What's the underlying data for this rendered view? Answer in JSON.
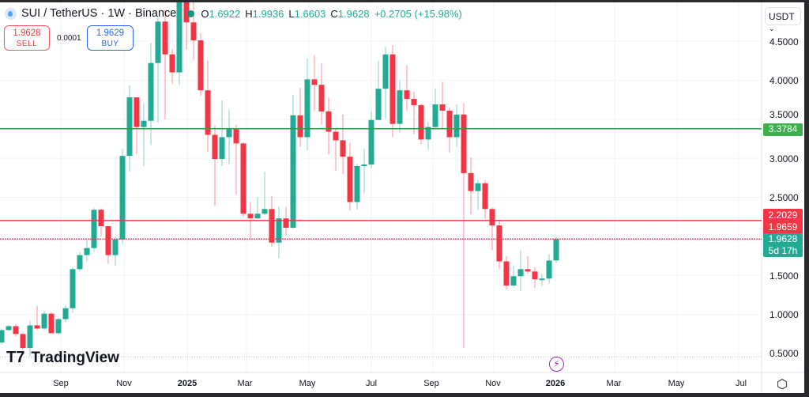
{
  "header": {
    "symbol": "SUI / TetherUS · 1W · Binance",
    "open_label": "O",
    "open": "1.6922",
    "high_label": "H",
    "high": "1.9936",
    "low_label": "L",
    "low": "1.6603",
    "close_label": "C",
    "close": "1.9628",
    "change": "+0.2705 (+15.98%)"
  },
  "trade": {
    "sell_price": "1.9628",
    "sell_label": "SELL",
    "spread": "0.0001",
    "buy_price": "1.9629",
    "buy_label": "BUY"
  },
  "currency": "USDT",
  "price_axis": [
    "4.5000",
    "4.0000",
    "3.5000",
    "3.0000",
    "2.5000",
    "1.5000",
    "1.0000",
    "0.5000"
  ],
  "price_labels": {
    "green_line": "3.3784",
    "red_line": "2.2029",
    "red_dotted": "1.9659",
    "last": "1.9628",
    "countdown": "5d 17h"
  },
  "time_axis": [
    "Sep",
    "Nov",
    "2025",
    "Mar",
    "May",
    "Jul",
    "Sep",
    "Nov",
    "2026",
    "Mar",
    "May",
    "Jul"
  ],
  "brand": "TradingView",
  "icons": {
    "settings": "gear-icon",
    "event": "lightning-icon",
    "dropdown": "chevron-down-icon"
  },
  "colors": {
    "up": "#22ab94",
    "down": "#f23645",
    "green_line": "#2ea043",
    "red_line": "#f23645"
  },
  "chart_data": {
    "type": "candlestick",
    "interval": "1W",
    "ylim": [
      0.4,
      5.05
    ],
    "hlines": [
      {
        "value": 3.3784,
        "color": "green"
      },
      {
        "value": 2.2029,
        "color": "red"
      },
      {
        "value": 1.9659,
        "color": "red",
        "style": "dotted"
      }
    ],
    "candles": [
      [
        0.64,
        0.82,
        0.62,
        0.8
      ],
      [
        0.8,
        0.87,
        0.79,
        0.85
      ],
      [
        0.85,
        0.88,
        0.72,
        0.75
      ],
      [
        0.75,
        0.77,
        0.55,
        0.57
      ],
      [
        0.57,
        0.92,
        0.47,
        0.86
      ],
      [
        0.86,
        1.11,
        0.8,
        0.82
      ],
      [
        0.82,
        1.05,
        0.8,
        1.01
      ],
      [
        1.01,
        1.03,
        0.76,
        0.76
      ],
      [
        0.76,
        0.96,
        0.74,
        0.94
      ],
      [
        0.94,
        1.12,
        0.9,
        1.08
      ],
      [
        1.08,
        1.6,
        1.02,
        1.58
      ],
      [
        1.58,
        1.8,
        1.55,
        1.76
      ],
      [
        1.76,
        1.95,
        1.68,
        1.85
      ],
      [
        1.85,
        2.36,
        1.8,
        2.34
      ],
      [
        2.34,
        2.36,
        2.0,
        2.13
      ],
      [
        2.13,
        2.13,
        1.65,
        1.76
      ],
      [
        1.76,
        2.0,
        1.62,
        1.96
      ],
      [
        1.96,
        3.12,
        1.9,
        3.03
      ],
      [
        3.03,
        3.93,
        2.83,
        3.78
      ],
      [
        3.78,
        3.78,
        3.05,
        3.4
      ],
      [
        3.4,
        3.7,
        2.9,
        3.48
      ],
      [
        3.48,
        4.48,
        3.17,
        4.22
      ],
      [
        4.22,
        4.8,
        3.45,
        4.75
      ],
      [
        4.75,
        4.9,
        3.5,
        4.33
      ],
      [
        4.33,
        4.4,
        3.95,
        4.1
      ],
      [
        4.1,
        5.35,
        3.94,
        5.1
      ],
      [
        5.1,
        5.3,
        4.39,
        4.74
      ],
      [
        4.74,
        5.0,
        4.26,
        4.51
      ],
      [
        4.51,
        4.6,
        3.8,
        3.87
      ],
      [
        3.87,
        4.25,
        3.08,
        3.3
      ],
      [
        3.3,
        3.42,
        2.39,
        2.99
      ],
      [
        2.99,
        3.74,
        2.9,
        3.27
      ],
      [
        3.27,
        3.62,
        2.93,
        3.37
      ],
      [
        3.37,
        3.43,
        2.53,
        3.19
      ],
      [
        3.19,
        3.2,
        2.25,
        2.29
      ],
      [
        2.29,
        2.44,
        1.97,
        2.23
      ],
      [
        2.23,
        2.5,
        2.22,
        2.29
      ],
      [
        2.29,
        2.83,
        2.27,
        2.35
      ],
      [
        2.35,
        2.52,
        1.87,
        1.92
      ],
      [
        1.92,
        2.38,
        1.72,
        2.23
      ],
      [
        2.23,
        2.38,
        2.01,
        2.11
      ],
      [
        2.11,
        3.81,
        2.1,
        3.55
      ],
      [
        3.55,
        3.9,
        3.15,
        3.27
      ],
      [
        3.27,
        4.28,
        3.1,
        4.01
      ],
      [
        4.01,
        4.32,
        3.6,
        3.94
      ],
      [
        3.94,
        4.22,
        3.43,
        3.6
      ],
      [
        3.6,
        3.78,
        3.05,
        3.34
      ],
      [
        3.34,
        3.38,
        2.84,
        3.23
      ],
      [
        3.23,
        3.56,
        2.8,
        3.02
      ],
      [
        3.02,
        3.2,
        2.33,
        2.44
      ],
      [
        2.44,
        2.93,
        2.34,
        2.9
      ],
      [
        2.9,
        3.12,
        2.55,
        2.92
      ],
      [
        2.92,
        3.6,
        2.87,
        3.49
      ],
      [
        3.49,
        4.25,
        3.5,
        3.89
      ],
      [
        3.89,
        4.43,
        3.51,
        4.33
      ],
      [
        4.33,
        4.45,
        3.27,
        3.44
      ],
      [
        3.44,
        4.0,
        3.32,
        3.87
      ],
      [
        3.87,
        4.19,
        3.61,
        3.76
      ],
      [
        3.76,
        3.85,
        3.31,
        3.68
      ],
      [
        3.68,
        3.7,
        3.18,
        3.24
      ],
      [
        3.24,
        3.47,
        3.11,
        3.4
      ],
      [
        3.4,
        3.89,
        3.38,
        3.69
      ],
      [
        3.69,
        3.98,
        3.37,
        3.61
      ],
      [
        3.61,
        3.65,
        3.07,
        3.27
      ],
      [
        3.27,
        3.69,
        3.15,
        3.56
      ],
      [
        3.56,
        3.71,
        0.57,
        2.81
      ],
      [
        2.81,
        3.01,
        2.28,
        2.58
      ],
      [
        2.58,
        2.72,
        2.34,
        2.68
      ],
      [
        2.68,
        2.72,
        2.23,
        2.35
      ],
      [
        2.35,
        2.37,
        1.82,
        2.14
      ],
      [
        2.14,
        2.22,
        1.58,
        1.68
      ],
      [
        1.68,
        1.75,
        1.32,
        1.37
      ],
      [
        1.37,
        1.62,
        1.35,
        1.49
      ],
      [
        1.49,
        1.82,
        1.3,
        1.58
      ],
      [
        1.58,
        1.75,
        1.52,
        1.55
      ],
      [
        1.55,
        1.6,
        1.34,
        1.45
      ],
      [
        1.44,
        1.52,
        1.37,
        1.46
      ],
      [
        1.46,
        1.77,
        1.4,
        1.69
      ],
      [
        1.6922,
        1.9936,
        1.6603,
        1.9628
      ]
    ],
    "candle_format": [
      "open",
      "high",
      "low",
      "close"
    ]
  }
}
